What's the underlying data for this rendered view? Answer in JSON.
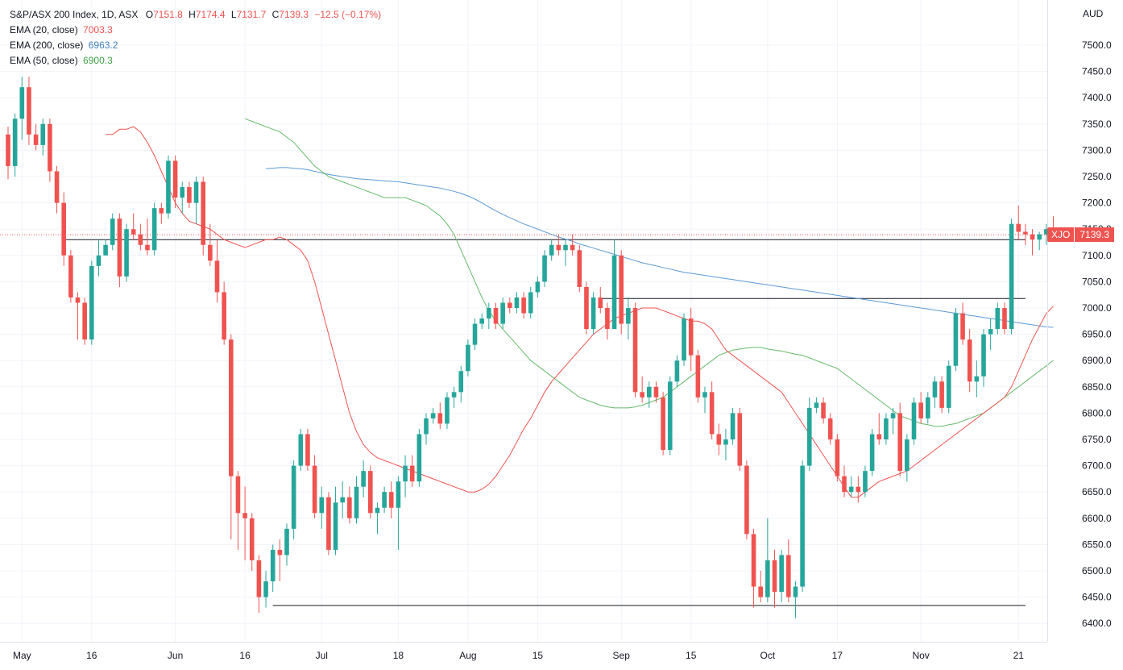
{
  "legend": {
    "title": "S&P/ASX 200 Index, 1D, ASX",
    "open_label": "O",
    "open": "7151.8",
    "high_label": "H",
    "high": "7174.4",
    "low_label": "L",
    "low": "7131.7",
    "close_label": "C",
    "close": "7139.3",
    "change": "−12.5 (−0.17%)",
    "ema20_label": "EMA (20, close)",
    "ema20_value": "7003.3",
    "ema200_label": "EMA (200, close)",
    "ema200_value": "6963.2",
    "ema50_label": "EMA (50, close)",
    "ema50_value": "6900.3"
  },
  "currency": "AUD",
  "price_tag": {
    "symbol": "XJO",
    "value": "7139.3"
  },
  "colors": {
    "up": "#26a69a",
    "down": "#ef5350",
    "ema20": "#ef5350",
    "ema200": "#5b9bd5",
    "ema50": "#66bb6a",
    "hline": "#131722"
  },
  "chart_data": {
    "type": "candlestick",
    "ylim": [
      6380,
      7560
    ],
    "y_ticks": [
      6400,
      6450,
      6500,
      6550,
      6600,
      6650,
      6700,
      6750,
      6800,
      6850,
      6900,
      6950,
      7000,
      7050,
      7100,
      7150,
      7200,
      7250,
      7300,
      7350,
      7400,
      7450,
      7500
    ],
    "x_ticks": [
      {
        "label": "May",
        "idx": 2
      },
      {
        "label": "16",
        "idx": 12
      },
      {
        "label": "Jun",
        "idx": 24
      },
      {
        "label": "16",
        "idx": 34
      },
      {
        "label": "Jul",
        "idx": 45
      },
      {
        "label": "18",
        "idx": 56
      },
      {
        "label": "Aug",
        "idx": 66
      },
      {
        "label": "15",
        "idx": 76
      },
      {
        "label": "Sep",
        "idx": 88
      },
      {
        "label": "15",
        "idx": 98
      },
      {
        "label": "Oct",
        "idx": 109
      },
      {
        "label": "17",
        "idx": 119
      },
      {
        "label": "Nov",
        "idx": 131
      },
      {
        "label": "21",
        "idx": 145
      }
    ],
    "candles": [
      [
        7330,
        7345,
        7245,
        7270
      ],
      [
        7270,
        7370,
        7250,
        7360
      ],
      [
        7360,
        7440,
        7320,
        7420
      ],
      [
        7420,
        7440,
        7310,
        7330
      ],
      [
        7330,
        7350,
        7300,
        7310
      ],
      [
        7310,
        7360,
        7290,
        7350
      ],
      [
        7350,
        7360,
        7240,
        7260
      ],
      [
        7260,
        7270,
        7180,
        7200
      ],
      [
        7200,
        7220,
        7080,
        7100
      ],
      [
        7100,
        7110,
        7010,
        7020
      ],
      [
        7020,
        7030,
        6940,
        7010
      ],
      [
        7010,
        7020,
        6930,
        6940
      ],
      [
        6940,
        7090,
        6930,
        7080
      ],
      [
        7080,
        7130,
        7060,
        7100
      ],
      [
        7100,
        7130,
        7100,
        7120
      ],
      [
        7120,
        7180,
        7110,
        7170
      ],
      [
        7170,
        7180,
        7040,
        7060
      ],
      [
        7060,
        7160,
        7050,
        7150
      ],
      [
        7150,
        7180,
        7130,
        7140
      ],
      [
        7140,
        7160,
        7110,
        7120
      ],
      [
        7120,
        7170,
        7100,
        7110
      ],
      [
        7110,
        7200,
        7100,
        7190
      ],
      [
        7190,
        7200,
        7160,
        7180
      ],
      [
        7180,
        7290,
        7170,
        7280
      ],
      [
        7280,
        7290,
        7190,
        7210
      ],
      [
        7210,
        7240,
        7180,
        7230
      ],
      [
        7230,
        7240,
        7190,
        7200
      ],
      [
        7200,
        7250,
        7160,
        7240
      ],
      [
        7240,
        7250,
        7100,
        7120
      ],
      [
        7120,
        7160,
        7080,
        7090
      ],
      [
        7090,
        7130,
        7010,
        7030
      ],
      [
        7030,
        7050,
        6930,
        6940
      ],
      [
        6940,
        6950,
        6560,
        6680
      ],
      [
        6680,
        6690,
        6540,
        6610
      ],
      [
        6610,
        6660,
        6520,
        6600
      ],
      [
        6600,
        6610,
        6500,
        6520
      ],
      [
        6520,
        6530,
        6420,
        6450
      ],
      [
        6450,
        6500,
        6430,
        6480
      ],
      [
        6480,
        6550,
        6460,
        6540
      ],
      [
        6540,
        6560,
        6480,
        6530
      ],
      [
        6530,
        6590,
        6510,
        6580
      ],
      [
        6580,
        6710,
        6560,
        6700
      ],
      [
        6700,
        6770,
        6690,
        6760
      ],
      [
        6760,
        6770,
        6690,
        6700
      ],
      [
        6700,
        6720,
        6600,
        6610
      ],
      [
        6610,
        6660,
        6580,
        6640
      ],
      [
        6640,
        6650,
        6530,
        6540
      ],
      [
        6540,
        6660,
        6530,
        6630
      ],
      [
        6630,
        6670,
        6600,
        6640
      ],
      [
        6640,
        6660,
        6590,
        6600
      ],
      [
        6600,
        6680,
        6590,
        6660
      ],
      [
        6660,
        6710,
        6640,
        6690
      ],
      [
        6690,
        6700,
        6600,
        6610
      ],
      [
        6610,
        6630,
        6570,
        6620
      ],
      [
        6620,
        6660,
        6610,
        6650
      ],
      [
        6650,
        6670,
        6600,
        6620
      ],
      [
        6620,
        6680,
        6540,
        6670
      ],
      [
        6670,
        6720,
        6640,
        6700
      ],
      [
        6700,
        6720,
        6660,
        6670
      ],
      [
        6670,
        6770,
        6660,
        6760
      ],
      [
        6760,
        6800,
        6740,
        6790
      ],
      [
        6790,
        6810,
        6780,
        6800
      ],
      [
        6800,
        6820,
        6770,
        6780
      ],
      [
        6780,
        6840,
        6770,
        6830
      ],
      [
        6830,
        6850,
        6810,
        6840
      ],
      [
        6840,
        6890,
        6820,
        6880
      ],
      [
        6880,
        6940,
        6870,
        6930
      ],
      [
        6930,
        6980,
        6920,
        6970
      ],
      [
        6970,
        6990,
        6960,
        6980
      ],
      [
        6980,
        7010,
        6960,
        7000
      ],
      [
        7000,
        7010,
        6960,
        6970
      ],
      [
        6970,
        7020,
        6960,
        7010
      ],
      [
        7010,
        7020,
        6990,
        7000
      ],
      [
        7000,
        7030,
        6990,
        7020
      ],
      [
        7020,
        7030,
        6980,
        6990
      ],
      [
        6990,
        7040,
        6980,
        7030
      ],
      [
        7030,
        7060,
        7020,
        7050
      ],
      [
        7050,
        7110,
        7040,
        7100
      ],
      [
        7100,
        7130,
        7090,
        7120
      ],
      [
        7120,
        7140,
        7100,
        7110
      ],
      [
        7110,
        7130,
        7080,
        7120
      ],
      [
        7120,
        7140,
        7100,
        7110
      ],
      [
        7110,
        7120,
        7030,
        7040
      ],
      [
        7040,
        7050,
        6950,
        6960
      ],
      [
        6960,
        7030,
        6950,
        7020
      ],
      [
        7020,
        7040,
        6990,
        7000
      ],
      [
        7000,
        7010,
        6940,
        6960
      ],
      [
        6960,
        7130,
        6960,
        7100
      ],
      [
        7100,
        7110,
        6950,
        6970
      ],
      [
        6970,
        7020,
        6940,
        7000
      ],
      [
        7000,
        7010,
        6830,
        6840
      ],
      [
        6840,
        6870,
        6820,
        6830
      ],
      [
        6830,
        6860,
        6810,
        6850
      ],
      [
        6850,
        6860,
        6820,
        6830
      ],
      [
        6830,
        6840,
        6720,
        6730
      ],
      [
        6730,
        6870,
        6720,
        6860
      ],
      [
        6860,
        6910,
        6850,
        6900
      ],
      [
        6900,
        6990,
        6890,
        6980
      ],
      [
        6980,
        7000,
        6880,
        6910
      ],
      [
        6910,
        6920,
        6820,
        6830
      ],
      [
        6830,
        6850,
        6800,
        6840
      ],
      [
        6840,
        6860,
        6750,
        6760
      ],
      [
        6760,
        6780,
        6720,
        6740
      ],
      [
        6740,
        6770,
        6710,
        6750
      ],
      [
        6750,
        6810,
        6740,
        6800
      ],
      [
        6800,
        6810,
        6690,
        6700
      ],
      [
        6700,
        6710,
        6560,
        6570
      ],
      [
        6570,
        6580,
        6430,
        6470
      ],
      [
        6470,
        6500,
        6440,
        6450
      ],
      [
        6450,
        6600,
        6440,
        6520
      ],
      [
        6520,
        6540,
        6430,
        6460
      ],
      [
        6460,
        6540,
        6440,
        6530
      ],
      [
        6530,
        6560,
        6440,
        6450
      ],
      [
        6450,
        6480,
        6410,
        6470
      ],
      [
        6470,
        6710,
        6460,
        6700
      ],
      [
        6700,
        6830,
        6690,
        6810
      ],
      [
        6810,
        6830,
        6800,
        6820
      ],
      [
        6820,
        6830,
        6780,
        6790
      ],
      [
        6790,
        6800,
        6740,
        6750
      ],
      [
        6750,
        6760,
        6670,
        6680
      ],
      [
        6680,
        6700,
        6640,
        6650
      ],
      [
        6650,
        6680,
        6640,
        6660
      ],
      [
        6660,
        6680,
        6630,
        6650
      ],
      [
        6650,
        6700,
        6640,
        6690
      ],
      [
        6690,
        6770,
        6680,
        6760
      ],
      [
        6760,
        6800,
        6740,
        6750
      ],
      [
        6750,
        6800,
        6740,
        6790
      ],
      [
        6790,
        6810,
        6760,
        6800
      ],
      [
        6800,
        6820,
        6680,
        6690
      ],
      [
        6690,
        6760,
        6670,
        6750
      ],
      [
        6750,
        6830,
        6740,
        6820
      ],
      [
        6820,
        6840,
        6780,
        6790
      ],
      [
        6790,
        6840,
        6780,
        6830
      ],
      [
        6830,
        6870,
        6810,
        6860
      ],
      [
        6860,
        6870,
        6800,
        6810
      ],
      [
        6810,
        6900,
        6800,
        6890
      ],
      [
        6890,
        7000,
        6880,
        6990
      ],
      [
        6990,
        7010,
        6930,
        6940
      ],
      [
        6940,
        6960,
        6840,
        6860
      ],
      [
        6860,
        6900,
        6830,
        6870
      ],
      [
        6870,
        6960,
        6850,
        6950
      ],
      [
        6950,
        6980,
        6920,
        6960
      ],
      [
        6960,
        7010,
        6950,
        7000
      ],
      [
        7000,
        7010,
        6950,
        6960
      ],
      [
        6960,
        7170,
        6950,
        7160
      ],
      [
        7160,
        7195,
        7130,
        7145
      ],
      [
        7145,
        7160,
        7120,
        7140
      ],
      [
        7140,
        7150,
        7100,
        7130
      ],
      [
        7130,
        7145,
        7110,
        7140
      ],
      [
        7140,
        7160,
        7120,
        7150
      ],
      [
        7151.8,
        7174.4,
        7131.7,
        7139.3
      ]
    ],
    "ema20": [
      7330,
      7330,
      7340,
      7340,
      7345,
      7335,
      7315,
      7290,
      7260,
      7230,
      7200,
      7180,
      7165,
      7160,
      7155,
      7150,
      7140,
      7130,
      7125,
      7120,
      7115,
      7120,
      7125,
      7130,
      7130,
      7135,
      7130,
      7120,
      7110,
      7090,
      7050,
      7000,
      6950,
      6900,
      6850,
      6800,
      6765,
      6740,
      6725,
      6715,
      6710,
      6705,
      6700,
      6695,
      6690,
      6685,
      6680,
      6675,
      6670,
      6665,
      6660,
      6655,
      6650,
      6650,
      6655,
      6665,
      6680,
      6700,
      6720,
      6745,
      6770,
      6790,
      6815,
      6840,
      6860,
      6875,
      6890,
      6905,
      6920,
      6935,
      6950,
      6960,
      6970,
      6980,
      6985,
      6990,
      6995,
      7000,
      7000,
      7000,
      6995,
      6990,
      6985,
      6980,
      6975,
      6975,
      6970,
      6960,
      6940,
      6920,
      6910,
      6900,
      6890,
      6880,
      6870,
      6860,
      6850,
      6840,
      6820,
      6800,
      6780,
      6760,
      6740,
      6720,
      6700,
      6680,
      6660,
      6640,
      6640,
      6650,
      6660,
      6670,
      6675,
      6680,
      6685,
      6690,
      6700,
      6710,
      6720,
      6730,
      6740,
      6750,
      6760,
      6770,
      6780,
      6790,
      6800,
      6810,
      6820,
      6830,
      6850,
      6880,
      6910,
      6940,
      6965,
      6990,
      7003.3
    ],
    "ema50": [
      7360,
      7355,
      7350,
      7345,
      7340,
      7335,
      7325,
      7315,
      7300,
      7285,
      7270,
      7260,
      7250,
      7245,
      7240,
      7235,
      7230,
      7225,
      7220,
      7215,
      7210,
      7210,
      7210,
      7210,
      7205,
      7200,
      7195,
      7185,
      7175,
      7160,
      7140,
      7110,
      7080,
      7050,
      7020,
      6995,
      6975,
      6960,
      6945,
      6930,
      6915,
      6900,
      6890,
      6880,
      6870,
      6860,
      6850,
      6840,
      6830,
      6825,
      6820,
      6815,
      6812,
      6810,
      6810,
      6810,
      6812,
      6815,
      6820,
      6825,
      6830,
      6840,
      6850,
      6860,
      6870,
      6880,
      6890,
      6900,
      6910,
      6915,
      6920,
      6922,
      6924,
      6925,
      6925,
      6922,
      6920,
      6918,
      6915,
      6912,
      6910,
      6905,
      6900,
      6895,
      6890,
      6885,
      6875,
      6865,
      6855,
      6845,
      6835,
      6825,
      6815,
      6805,
      6795,
      6790,
      6785,
      6780,
      6778,
      6775,
      6775,
      6778,
      6780,
      6785,
      6790,
      6795,
      6800,
      6810,
      6820,
      6830,
      6840,
      6850,
      6860,
      6870,
      6880,
      6890,
      6900.3
    ],
    "ema200": [
      7265,
      7266,
      7267,
      7267,
      7266,
      7265,
      7263,
      7260,
      7257,
      7254,
      7252,
      7250,
      7248,
      7246,
      7245,
      7244,
      7243,
      7242,
      7241,
      7240,
      7238,
      7236,
      7234,
      7232,
      7230,
      7228,
      7225,
      7222,
      7218,
      7213,
      7207,
      7200,
      7192,
      7185,
      7178,
      7172,
      7166,
      7160,
      7155,
      7150,
      7145,
      7140,
      7135,
      7131,
      7127,
      7122,
      7118,
      7114,
      7110,
      7106,
      7102,
      7098,
      7094,
      7090,
      7086,
      7083,
      7080,
      7077,
      7074,
      7071,
      7068,
      7066,
      7064,
      7062,
      7060,
      7058,
      7056,
      7054,
      7052,
      7050,
      7048,
      7046,
      7044,
      7042,
      7040,
      7038,
      7036,
      7034,
      7032,
      7030,
      7028,
      7026,
      7024,
      7022,
      7020,
      7018,
      7016,
      7014,
      7012,
      7010,
      7008,
      7006,
      7004,
      7002,
      7000,
      6998,
      6996,
      6994,
      6992,
      6990,
      6988,
      6986,
      6984,
      6982,
      6980,
      6978,
      6976,
      6974,
      6972,
      6970,
      6968,
      6966,
      6964,
      6963.2
    ],
    "horizontal_lines": [
      {
        "from_idx": 8,
        "to_idx": 146,
        "y": 7130
      },
      {
        "from_idx": 85,
        "to_idx": 146,
        "y": 7018
      },
      {
        "from_idx": 38,
        "to_idx": 146,
        "y": 6434
      }
    ],
    "last_close": 7139.3
  }
}
